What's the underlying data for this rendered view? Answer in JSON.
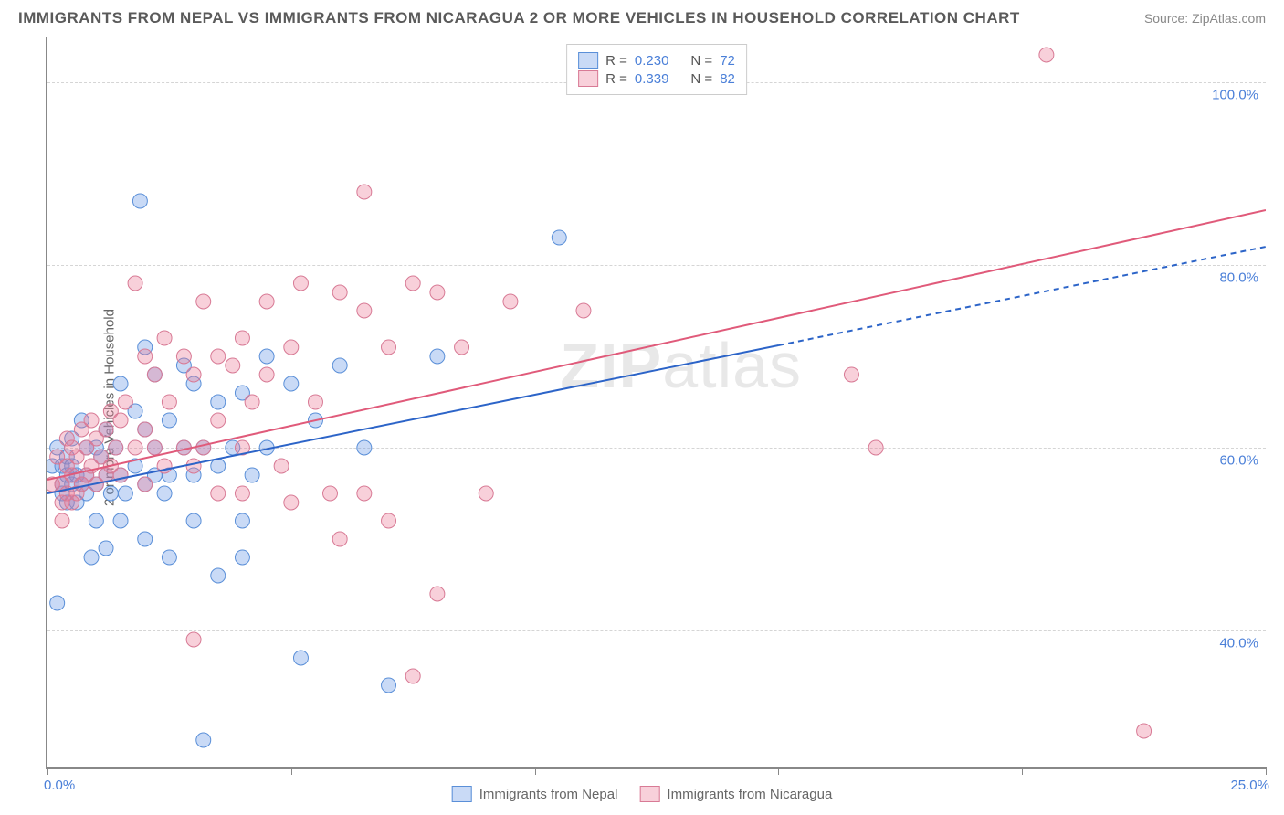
{
  "title": "IMMIGRANTS FROM NEPAL VS IMMIGRANTS FROM NICARAGUA 2 OR MORE VEHICLES IN HOUSEHOLD CORRELATION CHART",
  "source": "Source: ZipAtlas.com",
  "y_axis_label": "2 or more Vehicles in Household",
  "watermark_a": "ZIP",
  "watermark_b": "atlas",
  "chart": {
    "type": "scatter",
    "xlim": [
      0,
      25
    ],
    "ylim": [
      25,
      105
    ],
    "x_ticks": [
      0,
      5,
      10,
      15,
      20,
      25
    ],
    "x_tick_labels": {
      "start": "0.0%",
      "end": "25.0%"
    },
    "y_grid": [
      40,
      60,
      80,
      100
    ],
    "y_tick_labels": [
      "40.0%",
      "60.0%",
      "80.0%",
      "100.0%"
    ],
    "grid_color": "#d5d5d5",
    "axis_color": "#888888",
    "background_color": "#ffffff",
    "marker_radius": 8,
    "marker_opacity": 0.35,
    "line_width": 2,
    "series": [
      {
        "name": "Immigrants from Nepal",
        "color_fill": "rgba(100,150,230,0.35)",
        "color_stroke": "#5a8fd8",
        "line_color": "#2c64c8",
        "R": "0.230",
        "N": "72",
        "regression": {
          "x1": 0,
          "y1": 55,
          "x2": 25,
          "y2": 82,
          "dash_from_x": 15
        },
        "points": [
          [
            0.1,
            58
          ],
          [
            0.2,
            60
          ],
          [
            0.3,
            58
          ],
          [
            0.3,
            56
          ],
          [
            0.3,
            55
          ],
          [
            0.4,
            59
          ],
          [
            0.4,
            57
          ],
          [
            0.4,
            54
          ],
          [
            0.5,
            61
          ],
          [
            0.5,
            58
          ],
          [
            0.5,
            56
          ],
          [
            0.6,
            57
          ],
          [
            0.6,
            54
          ],
          [
            0.7,
            63
          ],
          [
            0.7,
            56
          ],
          [
            0.8,
            60
          ],
          [
            0.8,
            57
          ],
          [
            0.8,
            55
          ],
          [
            0.9,
            48
          ],
          [
            1.0,
            60
          ],
          [
            1.0,
            56
          ],
          [
            1.0,
            52
          ],
          [
            1.1,
            59
          ],
          [
            1.2,
            62
          ],
          [
            1.2,
            57
          ],
          [
            1.2,
            49
          ],
          [
            1.3,
            55
          ],
          [
            1.4,
            60
          ],
          [
            1.5,
            67
          ],
          [
            1.5,
            57
          ],
          [
            1.5,
            52
          ],
          [
            1.6,
            55
          ],
          [
            1.8,
            64
          ],
          [
            1.8,
            58
          ],
          [
            1.9,
            87
          ],
          [
            2.0,
            71
          ],
          [
            2.0,
            62
          ],
          [
            2.0,
            56
          ],
          [
            2.0,
            50
          ],
          [
            2.2,
            68
          ],
          [
            2.2,
            60
          ],
          [
            2.2,
            57
          ],
          [
            2.4,
            55
          ],
          [
            2.5,
            63
          ],
          [
            2.5,
            57
          ],
          [
            2.5,
            48
          ],
          [
            2.8,
            69
          ],
          [
            2.8,
            60
          ],
          [
            3.0,
            67
          ],
          [
            3.0,
            57
          ],
          [
            3.0,
            52
          ],
          [
            3.2,
            60
          ],
          [
            3.2,
            28
          ],
          [
            3.5,
            65
          ],
          [
            3.5,
            58
          ],
          [
            3.5,
            46
          ],
          [
            3.8,
            60
          ],
          [
            4.0,
            66
          ],
          [
            4.0,
            52
          ],
          [
            4.0,
            48
          ],
          [
            4.2,
            57
          ],
          [
            4.5,
            70
          ],
          [
            4.5,
            60
          ],
          [
            5.0,
            67
          ],
          [
            5.2,
            37
          ],
          [
            5.5,
            63
          ],
          [
            6.0,
            69
          ],
          [
            6.5,
            60
          ],
          [
            7.0,
            34
          ],
          [
            8.0,
            70
          ],
          [
            10.5,
            83
          ],
          [
            0.2,
            43
          ]
        ]
      },
      {
        "name": "Immigrants from Nicaragua",
        "color_fill": "rgba(235,120,150,0.35)",
        "color_stroke": "#d87a95",
        "line_color": "#e05a7a",
        "R": "0.339",
        "N": "82",
        "regression": {
          "x1": 0,
          "y1": 56.5,
          "x2": 25,
          "y2": 86,
          "dash_from_x": 25
        },
        "points": [
          [
            0.1,
            56
          ],
          [
            0.2,
            59
          ],
          [
            0.3,
            56
          ],
          [
            0.3,
            54
          ],
          [
            0.3,
            52
          ],
          [
            0.4,
            61
          ],
          [
            0.4,
            58
          ],
          [
            0.4,
            55
          ],
          [
            0.5,
            60
          ],
          [
            0.5,
            57
          ],
          [
            0.5,
            54
          ],
          [
            0.6,
            59
          ],
          [
            0.6,
            55
          ],
          [
            0.7,
            62
          ],
          [
            0.7,
            56
          ],
          [
            0.8,
            60
          ],
          [
            0.8,
            57
          ],
          [
            0.9,
            63
          ],
          [
            0.9,
            58
          ],
          [
            1.0,
            61
          ],
          [
            1.0,
            56
          ],
          [
            1.1,
            59
          ],
          [
            1.2,
            62
          ],
          [
            1.2,
            57
          ],
          [
            1.3,
            64
          ],
          [
            1.3,
            58
          ],
          [
            1.4,
            60
          ],
          [
            1.5,
            63
          ],
          [
            1.5,
            57
          ],
          [
            1.6,
            65
          ],
          [
            1.8,
            78
          ],
          [
            1.8,
            60
          ],
          [
            2.0,
            70
          ],
          [
            2.0,
            62
          ],
          [
            2.0,
            56
          ],
          [
            2.2,
            68
          ],
          [
            2.2,
            60
          ],
          [
            2.4,
            72
          ],
          [
            2.4,
            58
          ],
          [
            2.5,
            65
          ],
          [
            2.8,
            70
          ],
          [
            2.8,
            60
          ],
          [
            3.0,
            68
          ],
          [
            3.0,
            58
          ],
          [
            3.2,
            76
          ],
          [
            3.2,
            60
          ],
          [
            3.5,
            70
          ],
          [
            3.5,
            63
          ],
          [
            3.5,
            55
          ],
          [
            3.8,
            69
          ],
          [
            4.0,
            72
          ],
          [
            4.0,
            60
          ],
          [
            4.0,
            55
          ],
          [
            4.2,
            65
          ],
          [
            4.5,
            76
          ],
          [
            4.5,
            68
          ],
          [
            4.8,
            58
          ],
          [
            5.0,
            71
          ],
          [
            5.0,
            54
          ],
          [
            5.2,
            78
          ],
          [
            5.5,
            65
          ],
          [
            5.8,
            55
          ],
          [
            6.0,
            77
          ],
          [
            6.0,
            50
          ],
          [
            6.5,
            88
          ],
          [
            6.5,
            75
          ],
          [
            6.5,
            55
          ],
          [
            7.0,
            71
          ],
          [
            7.0,
            52
          ],
          [
            7.5,
            78
          ],
          [
            7.5,
            35
          ],
          [
            8.0,
            77
          ],
          [
            8.0,
            44
          ],
          [
            8.5,
            71
          ],
          [
            9.0,
            55
          ],
          [
            9.5,
            76
          ],
          [
            11.0,
            75
          ],
          [
            16.5,
            68
          ],
          [
            17.0,
            60
          ],
          [
            20.5,
            103
          ],
          [
            22.5,
            29
          ],
          [
            3.0,
            39
          ]
        ]
      }
    ]
  },
  "legend_top": {
    "r_label": "R =",
    "n_label": "N ="
  }
}
